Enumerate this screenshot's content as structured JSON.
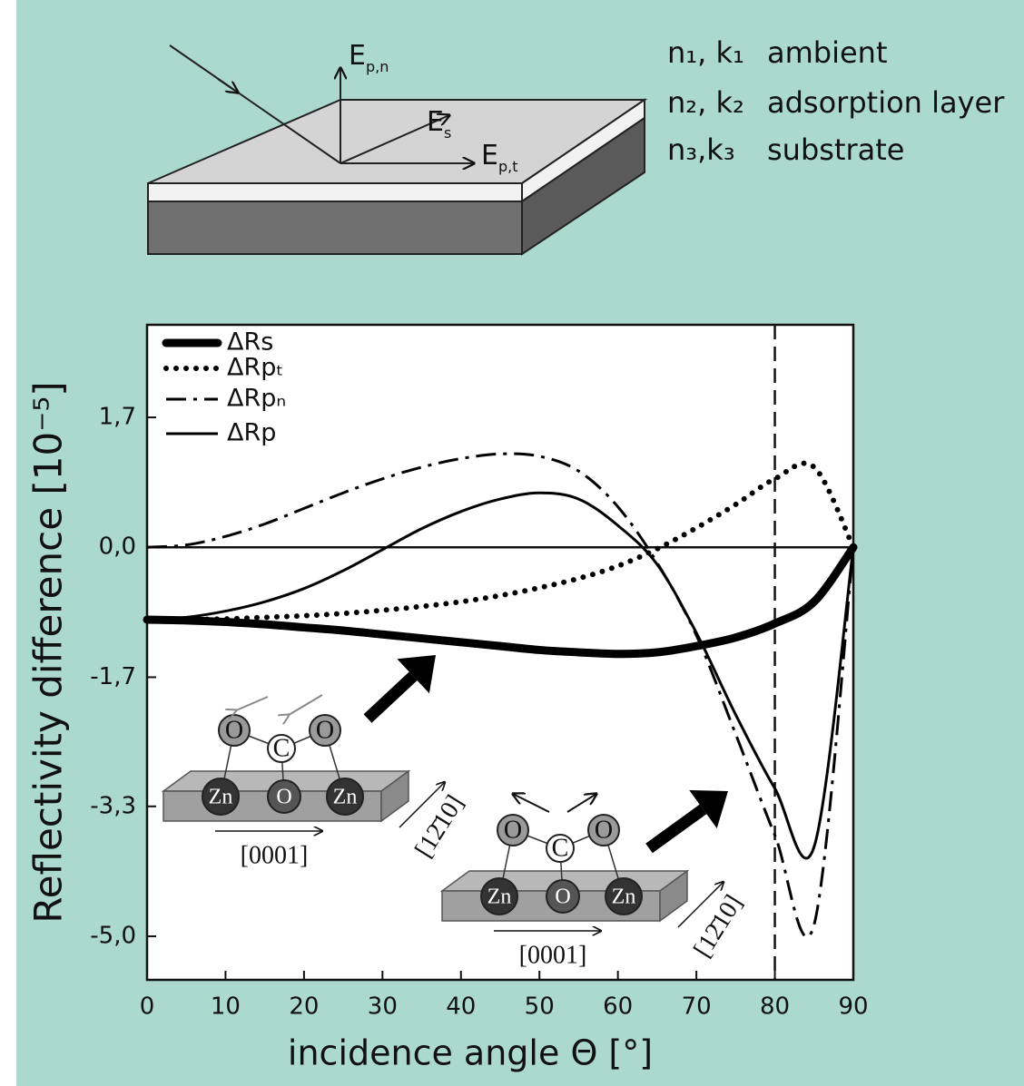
{
  "diagram": {
    "field_labels": [
      {
        "main": "E",
        "sub": "p,n"
      },
      {
        "main": "E",
        "sub": "s"
      },
      {
        "main": "E",
        "sub": "p,t"
      }
    ],
    "layers": [
      {
        "constants": "n₁, k₁",
        "name": "ambient"
      },
      {
        "constants": "n₂, k₂",
        "name": "adsorption layer"
      },
      {
        "constants": "n₃,k₃",
        "name": "substrate"
      }
    ]
  },
  "chart_data": {
    "type": "line",
    "xlabel": "incidence angle Θ [°]",
    "ylabel": "Reflectivity difference [10⁻⁵]",
    "x": [
      0,
      5,
      10,
      15,
      20,
      25,
      30,
      35,
      40,
      45,
      50,
      55,
      60,
      65,
      70,
      75,
      80,
      85,
      90
    ],
    "series": [
      {
        "name": "ΔRs",
        "color": "#000000",
        "line_style": "thick",
        "values": [
          -0.93,
          -0.94,
          -0.96,
          -0.99,
          -1.03,
          -1.07,
          -1.12,
          -1.17,
          -1.22,
          -1.27,
          -1.32,
          -1.35,
          -1.37,
          -1.35,
          -1.27,
          -1.16,
          -0.98,
          -0.7,
          0
        ]
      },
      {
        "name": "ΔRpₜ",
        "color": "#000000",
        "line_style": "dotted",
        "values": [
          -0.93,
          -0.93,
          -0.92,
          -0.9,
          -0.88,
          -0.85,
          -0.81,
          -0.76,
          -0.7,
          -0.62,
          -0.52,
          -0.4,
          -0.24,
          -0.02,
          0.25,
          0.55,
          0.88,
          1.03,
          0
        ]
      },
      {
        "name": "ΔRpₙ",
        "color": "#000000",
        "line_style": "dashdot",
        "values": [
          0,
          0.03,
          0.14,
          0.3,
          0.5,
          0.7,
          0.88,
          1.03,
          1.14,
          1.2,
          1.17,
          0.98,
          0.52,
          -0.2,
          -1.13,
          -2.4,
          -3.7,
          -4.85,
          0
        ]
      },
      {
        "name": "ΔRp",
        "color": "#000000",
        "line_style": "solid",
        "values": [
          -0.93,
          -0.9,
          -0.82,
          -0.7,
          -0.53,
          -0.3,
          -0.03,
          0.24,
          0.46,
          0.62,
          0.7,
          0.62,
          0.28,
          -0.22,
          -1.1,
          -2.15,
          -3.1,
          -3.85,
          0
        ]
      }
    ],
    "xlim": [
      0,
      90
    ],
    "xticks": [
      0,
      10,
      20,
      30,
      40,
      50,
      60,
      70,
      80,
      90
    ],
    "ylim": [
      -5.56,
      2.86
    ],
    "yticks": [
      {
        "value": -5.0,
        "label": "-5,0"
      },
      {
        "value": -3.33,
        "label": "-3,3"
      },
      {
        "value": -1.67,
        "label": "-1,7"
      },
      {
        "value": 0,
        "label": "0,0"
      },
      {
        "value": 1.67,
        "label": "1,7"
      }
    ],
    "vline": 80,
    "legend": "upper left",
    "insets": [
      {
        "atoms": [
          "O",
          "C",
          "O",
          "Zn",
          "O",
          "Zn"
        ],
        "directions": [
          "[0001]",
          "[12̄10]"
        ]
      },
      {
        "atoms": [
          "O",
          "C",
          "O",
          "Zn",
          "O",
          "Zn"
        ],
        "directions": [
          "[0001]",
          "[12̄10]"
        ]
      }
    ]
  }
}
